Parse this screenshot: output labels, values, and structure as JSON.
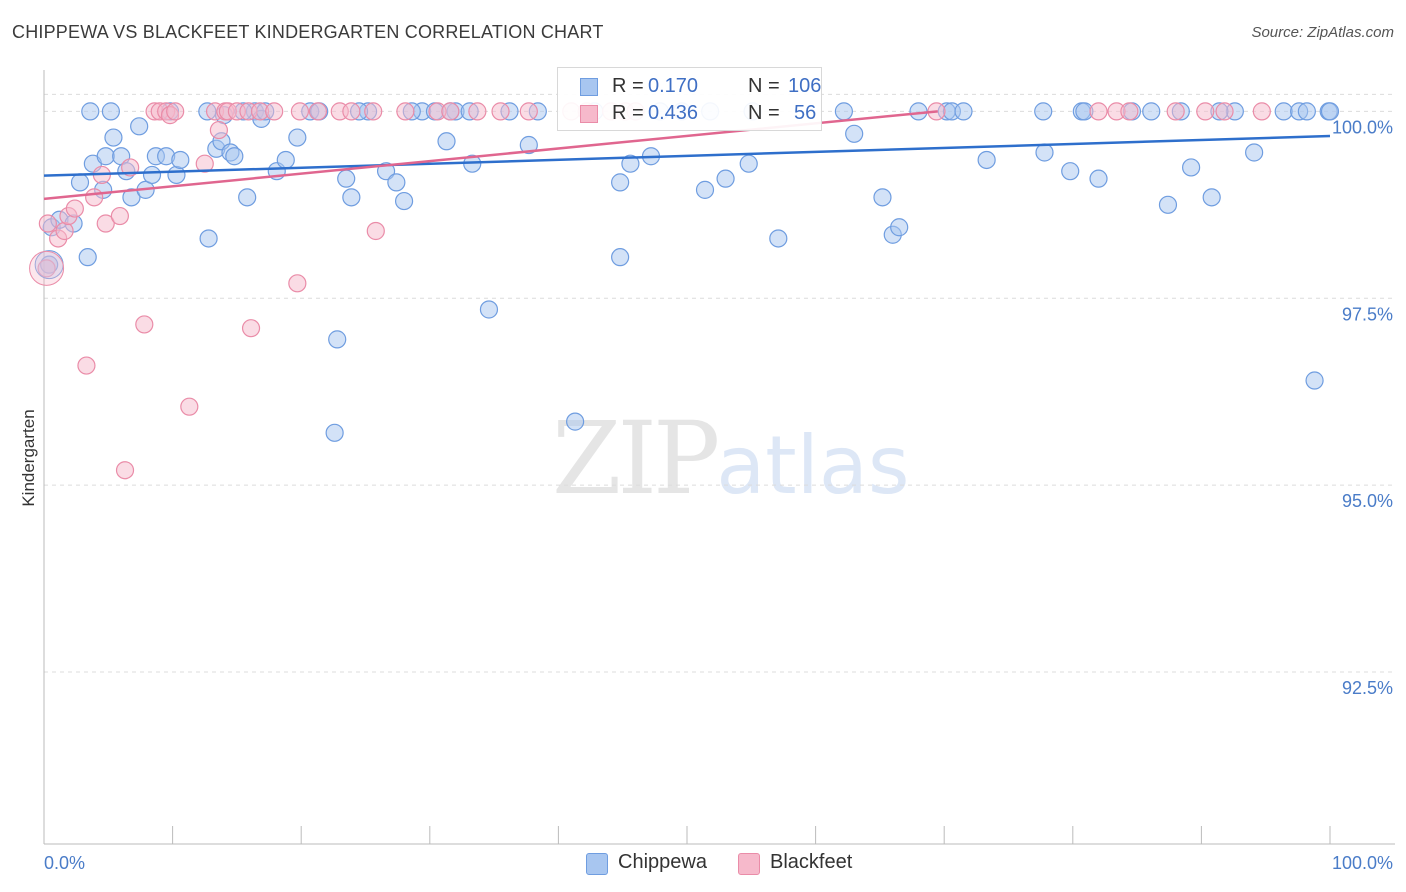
{
  "header": {
    "title": "CHIPPEWA VS BLACKFEET KINDERGARTEN CORRELATION CHART",
    "source": "Source: ZipAtlas.com"
  },
  "legend": {
    "chippewa": {
      "r_label": "R =",
      "r_value": "0.170",
      "n_label": "N =",
      "n_value": "106"
    },
    "blackfeet": {
      "r_label": "R =",
      "r_value": "0.436",
      "n_label": "N =",
      "n_value": "56"
    }
  },
  "watermark": {
    "zip": "ZIP",
    "atlas": "atlas"
  },
  "chart_data": {
    "type": "scatter",
    "title": "CHIPPEWA VS BLACKFEET KINDERGARTEN CORRELATION CHART",
    "xlabel": "",
    "ylabel": "Kindergarten",
    "xlim": [
      0,
      100
    ],
    "ylim": [
      90.2,
      100.5
    ],
    "x_tick_labels": {
      "left": "0.0%",
      "right": "100.0%"
    },
    "y_ticks": [
      {
        "value": 100.0,
        "label": "100.0%"
      },
      {
        "value": 97.5,
        "label": "97.5%"
      },
      {
        "value": 95.0,
        "label": "95.0%"
      },
      {
        "value": 92.5,
        "label": "92.5%"
      }
    ],
    "grid": true,
    "legend_position": "bottom-center",
    "colors": {
      "chippewa_fill": "#a8c6f0",
      "chippewa_stroke": "#6f9de0",
      "chippewa_line": "#2e6fcc",
      "blackfeet_fill": "#f6b9cb",
      "blackfeet_stroke": "#ea8ca8",
      "blackfeet_line": "#e0668f",
      "tick": "#4a7cc8",
      "grid": "#dcdcdc"
    },
    "series": [
      {
        "name": "Chippewa",
        "trend": {
          "x": [
            0,
            100
          ],
          "y": [
            99.14,
            99.67
          ]
        },
        "points": [
          [
            0.6,
            98.45
          ],
          [
            1.2,
            98.55
          ],
          [
            2.3,
            98.5
          ],
          [
            3.4,
            98.05
          ],
          [
            2.8,
            99.05
          ],
          [
            3.8,
            99.3
          ],
          [
            4.6,
            98.95
          ],
          [
            4.8,
            99.4
          ],
          [
            5.4,
            99.65
          ],
          [
            6.0,
            99.4
          ],
          [
            6.4,
            99.2
          ],
          [
            6.8,
            98.85
          ],
          [
            7.4,
            99.8
          ],
          [
            7.9,
            98.95
          ],
          [
            8.4,
            99.15
          ],
          [
            8.7,
            99.4
          ],
          [
            9.5,
            99.4
          ],
          [
            10.3,
            99.15
          ],
          [
            10.6,
            99.35
          ],
          [
            12.7,
            100.0
          ],
          [
            12.8,
            98.3
          ],
          [
            13.4,
            99.5
          ],
          [
            13.8,
            99.6
          ],
          [
            14.0,
            99.95
          ],
          [
            14.5,
            99.45
          ],
          [
            14.8,
            99.4
          ],
          [
            15.8,
            98.85
          ],
          [
            16.4,
            100.0
          ],
          [
            16.9,
            99.9
          ],
          [
            17.2,
            100.0
          ],
          [
            18.1,
            99.2
          ],
          [
            18.8,
            99.35
          ],
          [
            19.7,
            99.65
          ],
          [
            20.7,
            100.0
          ],
          [
            22.6,
            95.7
          ],
          [
            22.8,
            96.95
          ],
          [
            23.5,
            99.1
          ],
          [
            23.9,
            98.85
          ],
          [
            25.2,
            100.0
          ],
          [
            26.6,
            99.2
          ],
          [
            27.4,
            99.05
          ],
          [
            28.0,
            98.8
          ],
          [
            29.4,
            100.0
          ],
          [
            30.4,
            100.0
          ],
          [
            31.3,
            99.6
          ],
          [
            32.0,
            100.0
          ],
          [
            33.1,
            100.0
          ],
          [
            33.3,
            99.3
          ],
          [
            34.6,
            97.35
          ],
          [
            36.2,
            100.0
          ],
          [
            37.7,
            99.55
          ],
          [
            41.3,
            95.85
          ],
          [
            42.8,
            100.0
          ],
          [
            44.8,
            98.05
          ],
          [
            44.8,
            99.05
          ],
          [
            45.6,
            99.3
          ],
          [
            47.2,
            99.4
          ],
          [
            47.9,
            100.0
          ],
          [
            49.6,
            100.0
          ],
          [
            51.4,
            98.95
          ],
          [
            51.8,
            100.0
          ],
          [
            53.0,
            99.1
          ],
          [
            54.8,
            99.3
          ],
          [
            57.1,
            98.3
          ],
          [
            62.2,
            100.0
          ],
          [
            63.0,
            99.7
          ],
          [
            65.2,
            98.85
          ],
          [
            66.0,
            98.35
          ],
          [
            66.5,
            98.45
          ],
          [
            70.2,
            100.0
          ],
          [
            70.6,
            100.0
          ],
          [
            73.3,
            99.35
          ],
          [
            77.7,
            100.0
          ],
          [
            77.8,
            99.45
          ],
          [
            79.8,
            99.2
          ],
          [
            80.7,
            100.0
          ],
          [
            80.9,
            100.0
          ],
          [
            82.0,
            99.1
          ],
          [
            84.6,
            100.0
          ],
          [
            87.4,
            98.75
          ],
          [
            88.4,
            100.0
          ],
          [
            89.2,
            99.25
          ],
          [
            90.8,
            98.85
          ],
          [
            92.6,
            100.0
          ],
          [
            94.1,
            99.45
          ],
          [
            96.4,
            100.0
          ],
          [
            97.6,
            100.0
          ],
          [
            98.2,
            100.0
          ],
          [
            98.8,
            96.4
          ],
          [
            99.9,
            100.0
          ],
          [
            100.0,
            100.0
          ],
          [
            0.4,
            97.95
          ],
          [
            3.6,
            100.0
          ],
          [
            5.2,
            100.0
          ],
          [
            9.8,
            100.0
          ],
          [
            15.5,
            100.0
          ],
          [
            21.4,
            100.0
          ],
          [
            24.5,
            100.0
          ],
          [
            28.6,
            100.0
          ],
          [
            31.6,
            100.0
          ],
          [
            38.4,
            100.0
          ],
          [
            55.1,
            100.0
          ],
          [
            68.0,
            100.0
          ],
          [
            71.5,
            100.0
          ],
          [
            86.1,
            100.0
          ],
          [
            91.4,
            100.0
          ]
        ]
      },
      {
        "name": "Blackfeet",
        "trend": {
          "x": [
            0,
            69.5
          ],
          "y": [
            98.83,
            100.0
          ]
        },
        "points": [
          [
            0.2,
            97.9
          ],
          [
            1.1,
            98.3
          ],
          [
            1.6,
            98.4
          ],
          [
            1.9,
            98.6
          ],
          [
            2.4,
            98.7
          ],
          [
            3.3,
            96.6
          ],
          [
            3.9,
            98.85
          ],
          [
            4.5,
            99.15
          ],
          [
            4.8,
            98.5
          ],
          [
            5.9,
            98.6
          ],
          [
            6.3,
            95.2
          ],
          [
            6.7,
            99.25
          ],
          [
            7.8,
            97.15
          ],
          [
            8.6,
            100.0
          ],
          [
            9.0,
            100.0
          ],
          [
            9.5,
            100.0
          ],
          [
            9.8,
            99.95
          ],
          [
            10.2,
            100.0
          ],
          [
            11.3,
            96.05
          ],
          [
            12.5,
            99.3
          ],
          [
            13.3,
            100.0
          ],
          [
            13.6,
            99.75
          ],
          [
            14.1,
            100.0
          ],
          [
            14.3,
            100.0
          ],
          [
            15.0,
            100.0
          ],
          [
            15.9,
            100.0
          ],
          [
            16.1,
            97.1
          ],
          [
            16.8,
            100.0
          ],
          [
            17.9,
            100.0
          ],
          [
            19.7,
            97.7
          ],
          [
            19.9,
            100.0
          ],
          [
            21.3,
            100.0
          ],
          [
            23.0,
            100.0
          ],
          [
            23.9,
            100.0
          ],
          [
            25.6,
            100.0
          ],
          [
            25.8,
            98.4
          ],
          [
            28.1,
            100.0
          ],
          [
            30.6,
            100.0
          ],
          [
            31.6,
            100.0
          ],
          [
            33.7,
            100.0
          ],
          [
            35.5,
            100.0
          ],
          [
            37.7,
            100.0
          ],
          [
            41.0,
            100.0
          ],
          [
            42.2,
            100.0
          ],
          [
            44.1,
            100.0
          ],
          [
            45.2,
            100.0
          ],
          [
            46.0,
            100.0
          ],
          [
            69.4,
            100.0
          ],
          [
            82.0,
            100.0
          ],
          [
            83.4,
            100.0
          ],
          [
            84.4,
            100.0
          ],
          [
            88.0,
            100.0
          ],
          [
            90.3,
            100.0
          ],
          [
            91.8,
            100.0
          ],
          [
            94.7,
            100.0
          ],
          [
            0.3,
            98.5
          ]
        ]
      }
    ]
  }
}
